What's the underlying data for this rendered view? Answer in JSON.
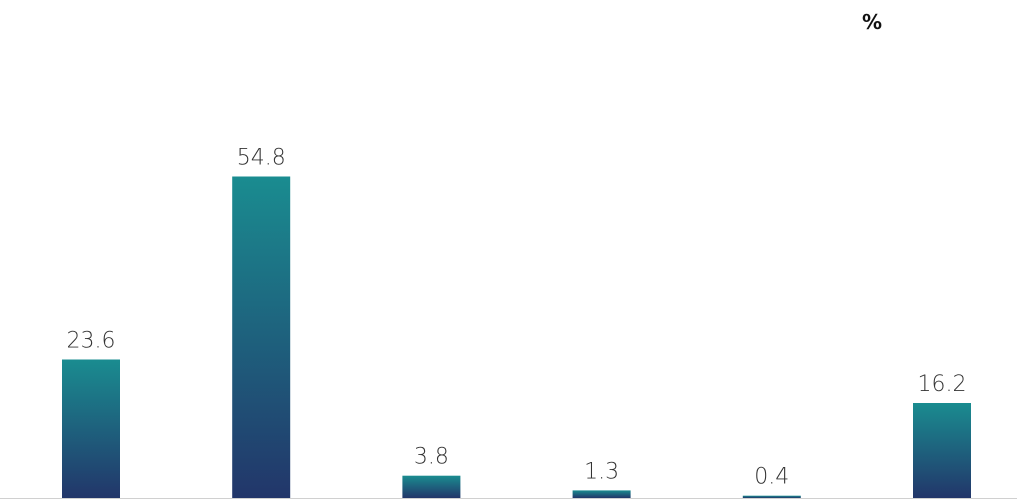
{
  "chart_data": {
    "type": "bar",
    "unit_label": "%",
    "values": [
      23.6,
      54.8,
      3.8,
      1.3,
      0.4,
      16.2
    ],
    "value_labels": [
      "23.6",
      "54.8",
      "3.8",
      "1.3",
      "0.4",
      "16.2"
    ],
    "ylim": [
      0,
      60
    ],
    "grid": false,
    "colors": {
      "bar_top": "#1a8c90",
      "bar_bottom": "#22366a",
      "baseline": "#d0d0d0"
    }
  }
}
